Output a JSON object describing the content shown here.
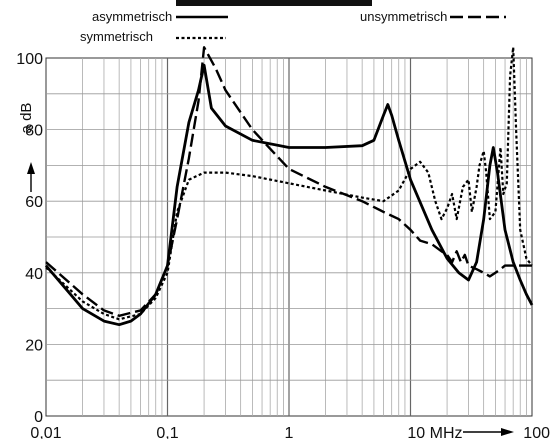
{
  "chart_data": {
    "type": "line",
    "title": "",
    "xlabel": "MHz",
    "ylabel": "a dB",
    "x_scale": "log",
    "xlim": [
      0.01,
      100
    ],
    "ylim": [
      0,
      100
    ],
    "grid": true,
    "legend_position": "top",
    "x_ticks": [
      {
        "value": 0.01,
        "label": "0,01"
      },
      {
        "value": 0.1,
        "label": "0,1"
      },
      {
        "value": 1,
        "label": "1"
      },
      {
        "value": 10,
        "label": "10 MHz"
      },
      {
        "value": 100,
        "label": "100"
      }
    ],
    "y_ticks": [
      {
        "value": 0,
        "label": "0"
      },
      {
        "value": 20,
        "label": "20"
      },
      {
        "value": 40,
        "label": "40"
      },
      {
        "value": 60,
        "label": "60"
      },
      {
        "value": 80,
        "label": "80"
      },
      {
        "value": 100,
        "label": "100"
      }
    ],
    "series": [
      {
        "name": "asymmetrisch",
        "style": "solid",
        "points": [
          [
            0.01,
            42
          ],
          [
            0.015,
            35
          ],
          [
            0.02,
            30
          ],
          [
            0.03,
            26.5
          ],
          [
            0.04,
            25.5
          ],
          [
            0.05,
            26.5
          ],
          [
            0.06,
            28.5
          ],
          [
            0.08,
            34
          ],
          [
            0.1,
            42
          ],
          [
            0.12,
            64
          ],
          [
            0.15,
            82
          ],
          [
            0.18,
            91
          ],
          [
            0.2,
            98
          ],
          [
            0.23,
            86
          ],
          [
            0.3,
            81
          ],
          [
            0.5,
            77
          ],
          [
            1,
            75
          ],
          [
            2,
            75
          ],
          [
            4,
            75.5
          ],
          [
            5,
            77
          ],
          [
            6,
            84
          ],
          [
            6.5,
            87
          ],
          [
            7,
            84
          ],
          [
            8,
            77
          ],
          [
            10,
            66
          ],
          [
            15,
            52
          ],
          [
            20,
            44
          ],
          [
            25,
            40
          ],
          [
            30,
            38
          ],
          [
            35,
            43
          ],
          [
            40,
            55
          ],
          [
            45,
            70
          ],
          [
            48,
            75
          ],
          [
            52,
            68
          ],
          [
            60,
            52
          ],
          [
            70,
            43
          ],
          [
            80,
            38
          ],
          [
            90,
            34
          ],
          [
            100,
            31
          ]
        ]
      },
      {
        "name": "symmetrisch",
        "style": "dotted",
        "points": [
          [
            0.01,
            41.5
          ],
          [
            0.02,
            32
          ],
          [
            0.03,
            28.5
          ],
          [
            0.04,
            27
          ],
          [
            0.06,
            28.5
          ],
          [
            0.08,
            33
          ],
          [
            0.1,
            40
          ],
          [
            0.12,
            57
          ],
          [
            0.15,
            66
          ],
          [
            0.2,
            68
          ],
          [
            0.3,
            68
          ],
          [
            0.5,
            67
          ],
          [
            1,
            65
          ],
          [
            2,
            63
          ],
          [
            4,
            61
          ],
          [
            6,
            60
          ],
          [
            8,
            63
          ],
          [
            10,
            69
          ],
          [
            12,
            71
          ],
          [
            14,
            68
          ],
          [
            16,
            60
          ],
          [
            18,
            55
          ],
          [
            20,
            58
          ],
          [
            22,
            62
          ],
          [
            24,
            55
          ],
          [
            27,
            64
          ],
          [
            30,
            66
          ],
          [
            32,
            57
          ],
          [
            35,
            64
          ],
          [
            37,
            70
          ],
          [
            40,
            74
          ],
          [
            42,
            68
          ],
          [
            45,
            55
          ],
          [
            50,
            57
          ],
          [
            55,
            75
          ],
          [
            58,
            62
          ],
          [
            62,
            65
          ],
          [
            66,
            95
          ],
          [
            70,
            103
          ],
          [
            74,
            80
          ],
          [
            80,
            52
          ],
          [
            90,
            44
          ],
          [
            100,
            42
          ]
        ]
      },
      {
        "name": "unsymmetrisch",
        "style": "dashed",
        "points": [
          [
            0.01,
            43
          ],
          [
            0.02,
            34
          ],
          [
            0.03,
            29.5
          ],
          [
            0.04,
            28
          ],
          [
            0.06,
            29.5
          ],
          [
            0.08,
            34
          ],
          [
            0.1,
            42
          ],
          [
            0.12,
            55
          ],
          [
            0.15,
            72
          ],
          [
            0.18,
            88
          ],
          [
            0.2,
            103
          ],
          [
            0.25,
            97
          ],
          [
            0.3,
            91
          ],
          [
            0.5,
            80
          ],
          [
            1,
            69
          ],
          [
            2,
            64
          ],
          [
            4,
            60
          ],
          [
            6,
            57
          ],
          [
            8,
            55
          ],
          [
            10,
            52
          ],
          [
            12,
            49
          ],
          [
            15,
            48
          ],
          [
            18,
            46
          ],
          [
            20,
            45
          ],
          [
            22,
            43
          ],
          [
            24,
            46
          ],
          [
            26,
            43
          ],
          [
            28,
            45
          ],
          [
            30,
            42
          ],
          [
            35,
            41
          ],
          [
            40,
            40
          ],
          [
            45,
            39
          ],
          [
            50,
            40
          ],
          [
            55,
            41
          ],
          [
            60,
            42
          ],
          [
            70,
            42
          ],
          [
            80,
            42
          ],
          [
            90,
            42
          ],
          [
            100,
            42
          ]
        ]
      }
    ]
  },
  "legend": {
    "asym_label": "asymmetrisch",
    "sym_label": "symmetrisch",
    "unsym_label": "unsymmetrisch"
  },
  "axis": {
    "ylabel": "a dB",
    "y_arrow": "↑",
    "x_unit_label": "10 MHz"
  }
}
